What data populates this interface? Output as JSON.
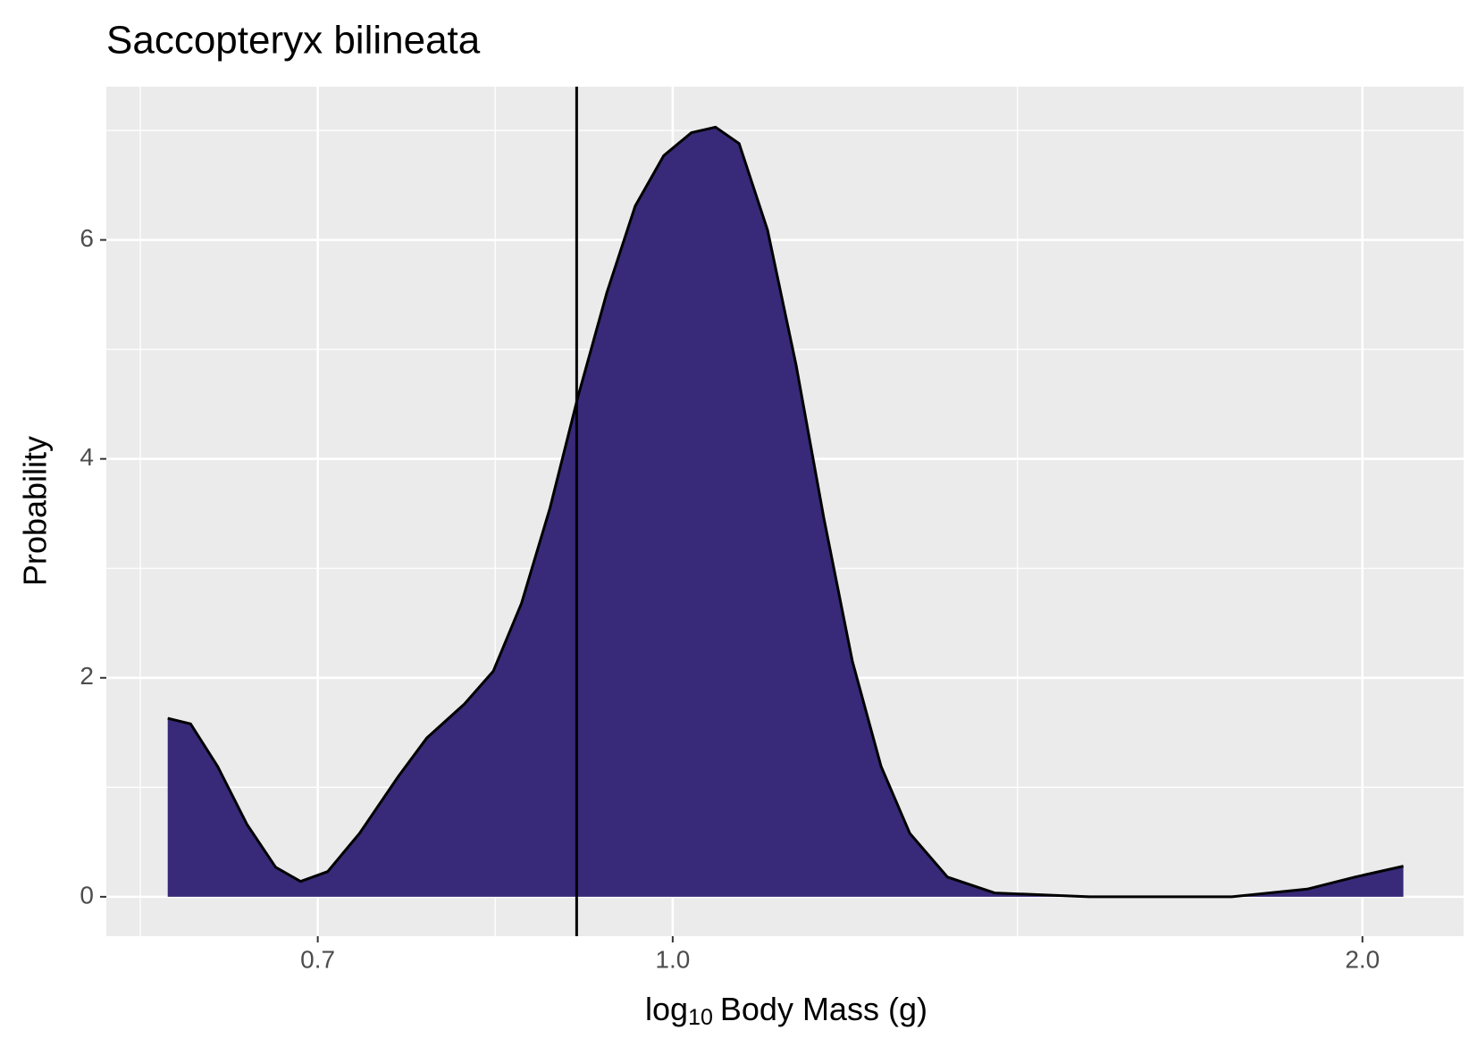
{
  "chart_data": {
    "type": "density",
    "title": "Saccopteryx bilineata",
    "xlabel": [
      "log",
      "10",
      "Body Mass (g)"
    ],
    "ylabel": "Probability",
    "x": [
      0.602,
      0.616,
      0.633,
      0.652,
      0.671,
      0.688,
      0.707,
      0.73,
      0.759,
      0.781,
      0.811,
      0.835,
      0.859,
      0.884,
      0.909,
      0.936,
      0.963,
      0.991,
      1.019,
      1.044,
      1.069,
      1.1,
      1.132,
      1.164,
      1.198,
      1.233,
      1.269,
      1.318,
      1.382,
      1.52,
      1.754,
      1.892,
      1.985,
      2.084
    ],
    "values": [
      1.63,
      1.58,
      1.19,
      0.66,
      0.27,
      0.14,
      0.23,
      0.58,
      1.1,
      1.45,
      1.76,
      2.06,
      2.68,
      3.55,
      4.56,
      5.52,
      6.31,
      6.77,
      6.98,
      7.03,
      6.88,
      6.09,
      4.86,
      3.46,
      2.15,
      1.19,
      0.58,
      0.18,
      0.035,
      0,
      0,
      0.07,
      0.18,
      0.28
    ],
    "color": "#382a78",
    "vline": 0.908,
    "xscale": "log",
    "xlim": [
      0.566,
      2.214
    ],
    "xticks": [
      {
        "value": 0.7,
        "label": "0.7"
      },
      {
        "value": 1.0,
        "label": "1.0"
      },
      {
        "value": 2.0,
        "label": "2.0"
      }
    ],
    "ylim": [
      -0.36,
      7.4
    ],
    "yticks": [
      0,
      2,
      4,
      6
    ],
    "grid": true
  }
}
